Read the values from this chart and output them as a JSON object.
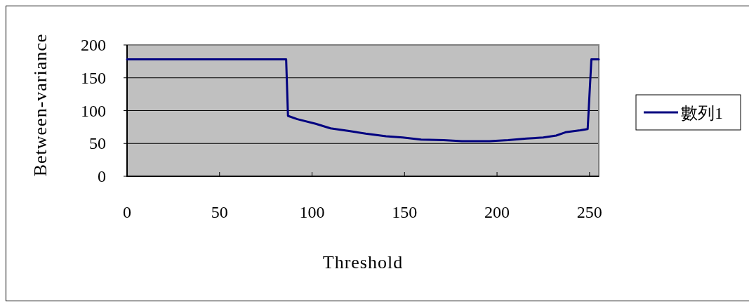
{
  "chart_data": {
    "type": "line",
    "xlabel": "Threshold",
    "ylabel": "Between-variance",
    "x": [
      0,
      86,
      87,
      92,
      102,
      110,
      120,
      129,
      140,
      149,
      159,
      171,
      181,
      196,
      206,
      216,
      225,
      232,
      237,
      245,
      249,
      251,
      255
    ],
    "series": [
      {
        "name": "數列1",
        "color": "#000080",
        "values": [
          178,
          178,
          92,
          87,
          80,
          73,
          69,
          65,
          61,
          59,
          56,
          55,
          53.5,
          53.5,
          55,
          57.5,
          59,
          62,
          67,
          70,
          72,
          178,
          178
        ]
      }
    ],
    "xlim": [
      0,
      255
    ],
    "ylim": [
      0,
      200
    ],
    "xticks": [
      0,
      50,
      100,
      150,
      200,
      250
    ],
    "yticks": [
      0,
      50,
      100,
      150,
      200
    ],
    "grid": "y",
    "legend": "right",
    "marker": "none",
    "line_style": "solid"
  }
}
